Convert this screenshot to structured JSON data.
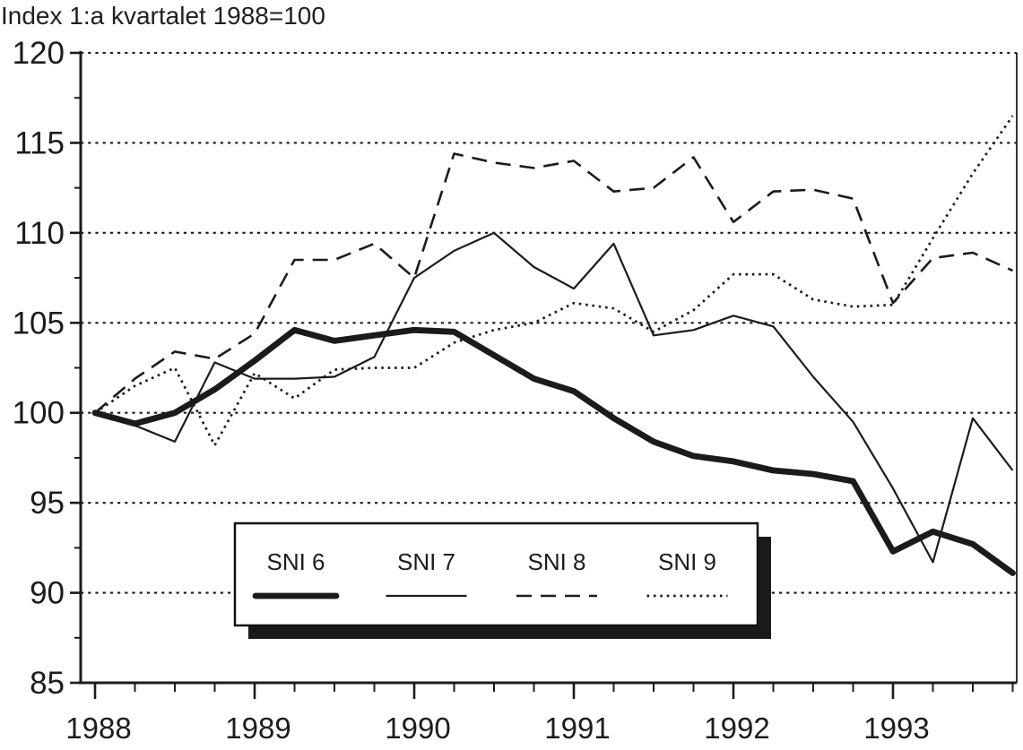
{
  "title": "Index 1:a kvartalet 1988=100",
  "chart_data": {
    "type": "line",
    "title": "Index 1:a kvartalet 1988=100",
    "index_base": "1988 kv1 = 100",
    "background": "#ffffff",
    "line_color": "#1b1b1b",
    "grid": "horizontal-dotted",
    "ylim": [
      85,
      120
    ],
    "yticks": [
      85,
      90,
      95,
      100,
      105,
      110,
      115,
      120
    ],
    "y_minor_step": 2.5,
    "x_tick_labels": [
      "1988",
      "1989",
      "1990",
      "1991",
      "1992",
      "1993"
    ],
    "quarters_per_year": 4,
    "categories": [
      "1988Q1",
      "1988Q2",
      "1988Q3",
      "1988Q4",
      "1989Q1",
      "1989Q2",
      "1989Q3",
      "1989Q4",
      "1990Q1",
      "1990Q2",
      "1990Q3",
      "1990Q4",
      "1991Q1",
      "1991Q2",
      "1991Q3",
      "1991Q4",
      "1992Q1",
      "1992Q2",
      "1992Q3",
      "1992Q4",
      "1993Q1",
      "1993Q2",
      "1993Q3",
      "1993Q4"
    ],
    "legend_position": "inside-bottom-center",
    "series": [
      {
        "name": "SNI 6",
        "style": "thick-solid",
        "values": [
          100.0,
          99.4,
          100.0,
          101.3,
          102.9,
          104.6,
          104.0,
          104.3,
          104.6,
          104.5,
          103.2,
          101.9,
          101.2,
          99.7,
          98.4,
          97.6,
          97.3,
          96.8,
          96.6,
          96.2,
          92.3,
          93.4,
          92.7,
          91.1
        ]
      },
      {
        "name": "SNI 7",
        "style": "thin-solid",
        "values": [
          100.0,
          99.3,
          98.4,
          102.8,
          101.9,
          101.9,
          102.0,
          103.1,
          107.5,
          109.0,
          110.0,
          108.1,
          106.9,
          109.4,
          104.3,
          104.6,
          105.4,
          104.8,
          102.0,
          99.5,
          95.8,
          91.7,
          99.7,
          96.8
        ]
      },
      {
        "name": "SNI 8",
        "style": "dashed",
        "values": [
          100.0,
          101.9,
          103.4,
          103.0,
          104.4,
          108.5,
          108.5,
          109.4,
          107.5,
          114.4,
          113.9,
          113.6,
          114.0,
          112.3,
          112.5,
          114.2,
          110.6,
          112.3,
          112.4,
          111.9,
          106.1,
          108.6,
          108.9,
          107.9
        ]
      },
      {
        "name": "SNI 9",
        "style": "dotted",
        "values": [
          100.0,
          101.5,
          102.5,
          98.2,
          102.2,
          100.8,
          102.4,
          102.5,
          102.5,
          103.9,
          104.6,
          105.0,
          106.1,
          105.8,
          104.5,
          105.7,
          107.7,
          107.7,
          106.3,
          105.9,
          106.0,
          109.7,
          113.3,
          116.5
        ]
      }
    ]
  }
}
